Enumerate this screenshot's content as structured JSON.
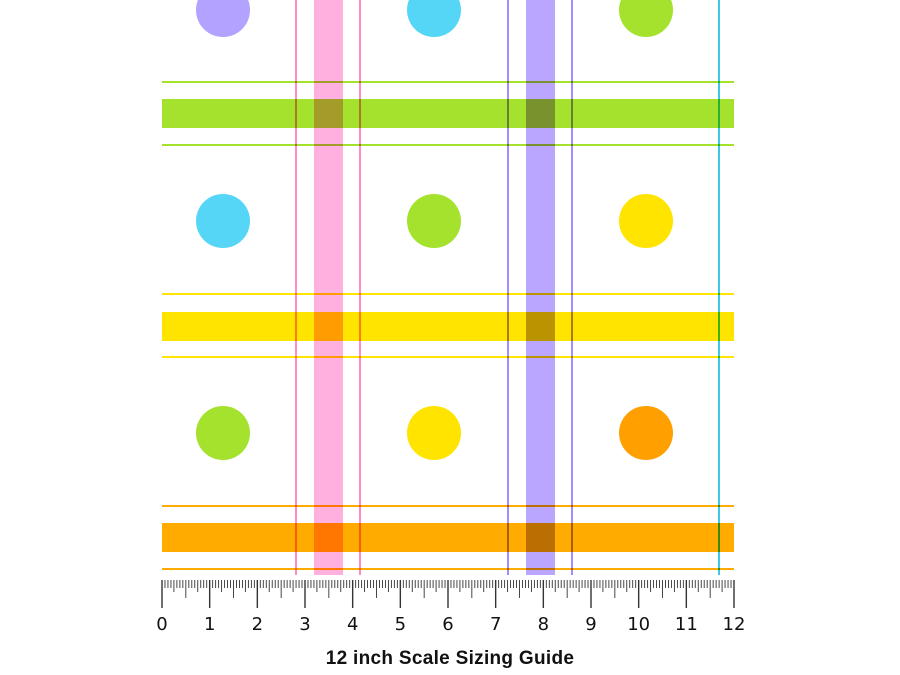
{
  "caption": "12 inch Scale Sizing Guide",
  "ruler": {
    "unit": "inch",
    "min": 0,
    "max": 12,
    "labels": [
      "0",
      "1",
      "2",
      "3",
      "4",
      "5",
      "6",
      "7",
      "8",
      "9",
      "10",
      "11",
      "12"
    ]
  },
  "pattern": {
    "background": "#ffffff",
    "dots": [
      {
        "name": "dot-purple",
        "color": "#b3a2ff"
      },
      {
        "name": "dot-cyan",
        "color": "#56d6f6"
      },
      {
        "name": "dot-green",
        "color": "#a4e22e"
      },
      {
        "name": "dot-cyan",
        "color": "#56d6f6"
      },
      {
        "name": "dot-green",
        "color": "#a4e22e"
      },
      {
        "name": "dot-yellow",
        "color": "#ffe400"
      },
      {
        "name": "dot-green",
        "color": "#a4e22e"
      },
      {
        "name": "dot-yellow",
        "color": "#ffe400"
      },
      {
        "name": "dot-orange",
        "color": "#ffa000"
      }
    ],
    "horizontal_stripes": [
      {
        "name": "green-stripe",
        "color": "#a4e22e"
      },
      {
        "name": "yellow-stripe",
        "color": "#ffe400"
      },
      {
        "name": "orange-stripe",
        "color": "#ffab00"
      }
    ],
    "vertical_stripes": [
      {
        "name": "pink-stripe",
        "color": "#ff9ad6",
        "line_color": "#ff7fc2"
      },
      {
        "name": "purple-stripe",
        "color": "#a68cff",
        "line_color": "#9b7fff"
      },
      {
        "name": "cyan-line",
        "color": "#28c2e2"
      }
    ]
  }
}
